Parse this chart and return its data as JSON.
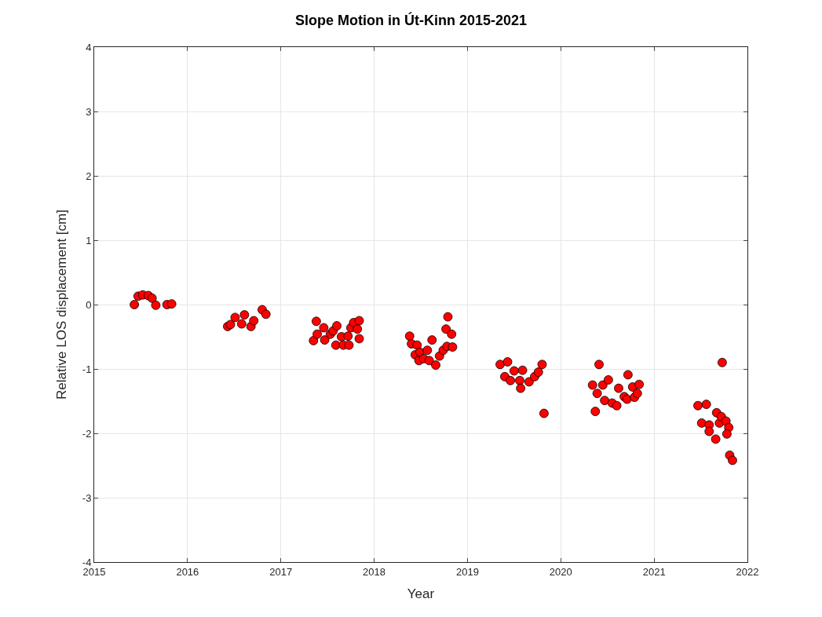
{
  "chart_data": {
    "type": "scatter",
    "title": "Slope Motion in Út-Kinn 2015-2021",
    "xlabel": "Year",
    "ylabel": "Relative LOS displacement [cm]",
    "x": [
      2015.43,
      2015.47,
      2015.52,
      2015.58,
      2015.62,
      2015.66,
      2015.78,
      2015.83,
      2016.43,
      2016.46,
      2016.51,
      2016.58,
      2016.61,
      2016.68,
      2016.71,
      2016.8,
      2016.84,
      2017.38,
      2017.35,
      2017.39,
      2017.46,
      2017.47,
      2017.53,
      2017.56,
      2017.6,
      2017.59,
      2017.65,
      2017.67,
      2017.72,
      2017.73,
      2017.75,
      2017.78,
      2017.82,
      2017.84,
      2017.84,
      2018.38,
      2018.4,
      2018.46,
      2018.44,
      2018.49,
      2018.48,
      2018.53,
      2018.57,
      2018.62,
      2018.59,
      2018.66,
      2018.7,
      2018.74,
      2018.78,
      2018.84,
      2018.77,
      2018.83,
      2018.79,
      2019.35,
      2019.43,
      2019.4,
      2019.46,
      2019.5,
      2019.56,
      2019.59,
      2019.57,
      2019.66,
      2019.72,
      2019.76,
      2019.8,
      2019.82,
      2020.41,
      2020.37,
      2020.34,
      2020.39,
      2020.45,
      2020.51,
      2020.47,
      2020.55,
      2020.6,
      2020.62,
      2020.68,
      2020.71,
      2020.72,
      2020.77,
      2020.79,
      2020.82,
      2020.84,
      2021.73,
      2021.47,
      2021.56,
      2021.51,
      2021.59,
      2021.59,
      2021.66,
      2021.67,
      2021.7,
      2021.72,
      2021.77,
      2021.8,
      2021.78,
      2021.81,
      2021.84
    ],
    "series": [
      {
        "color": "#ff0000",
        "values": [
          0,
          0.13,
          0.15,
          0.14,
          0.1,
          -0.01,
          0,
          0.01,
          -0.34,
          -0.31,
          -0.2,
          -0.3,
          -0.16,
          -0.34,
          -0.25,
          -0.08,
          -0.15,
          -0.26,
          -0.56,
          -0.46,
          -0.36,
          -0.55,
          -0.46,
          -0.41,
          -0.33,
          -0.63,
          -0.5,
          -0.63,
          -0.49,
          -0.63,
          -0.36,
          -0.28,
          -0.38,
          -0.25,
          -0.53,
          -0.49,
          -0.61,
          -0.63,
          -0.78,
          -0.74,
          -0.87,
          -0.84,
          -0.71,
          -0.55,
          -0.87,
          -0.94,
          -0.8,
          -0.71,
          -0.65,
          -0.66,
          -0.38,
          -0.46,
          -0.19,
          -0.93,
          -0.89,
          -1.12,
          -1.18,
          -1.03,
          -1.18,
          -1.02,
          -1.3,
          -1.2,
          -1.12,
          -1.05,
          -0.93,
          -1.69,
          -0.93,
          -1.66,
          -1.25,
          -1.38,
          -1.25,
          -1.17,
          -1.49,
          -1.53,
          -1.57,
          -1.3,
          -1.43,
          -1.47,
          -1.09,
          -1.28,
          -1.44,
          -1.38,
          -1.24,
          -0.9,
          -1.57,
          -1.55,
          -1.84,
          -1.87,
          -1.97,
          -2.09,
          -1.68,
          -1.84,
          -1.74,
          -1.81,
          -1.91,
          -2.01,
          -2.34,
          -2.42
        ]
      }
    ],
    "xlim": [
      2015,
      2022
    ],
    "xticks": [
      2015,
      2016,
      2017,
      2018,
      2019,
      2020,
      2021,
      2022
    ],
    "ylim": [
      -4,
      4
    ],
    "yticks": [
      -4,
      -3,
      -2,
      -1,
      0,
      1,
      2,
      3,
      4
    ],
    "grid": true,
    "marker": "circle"
  }
}
